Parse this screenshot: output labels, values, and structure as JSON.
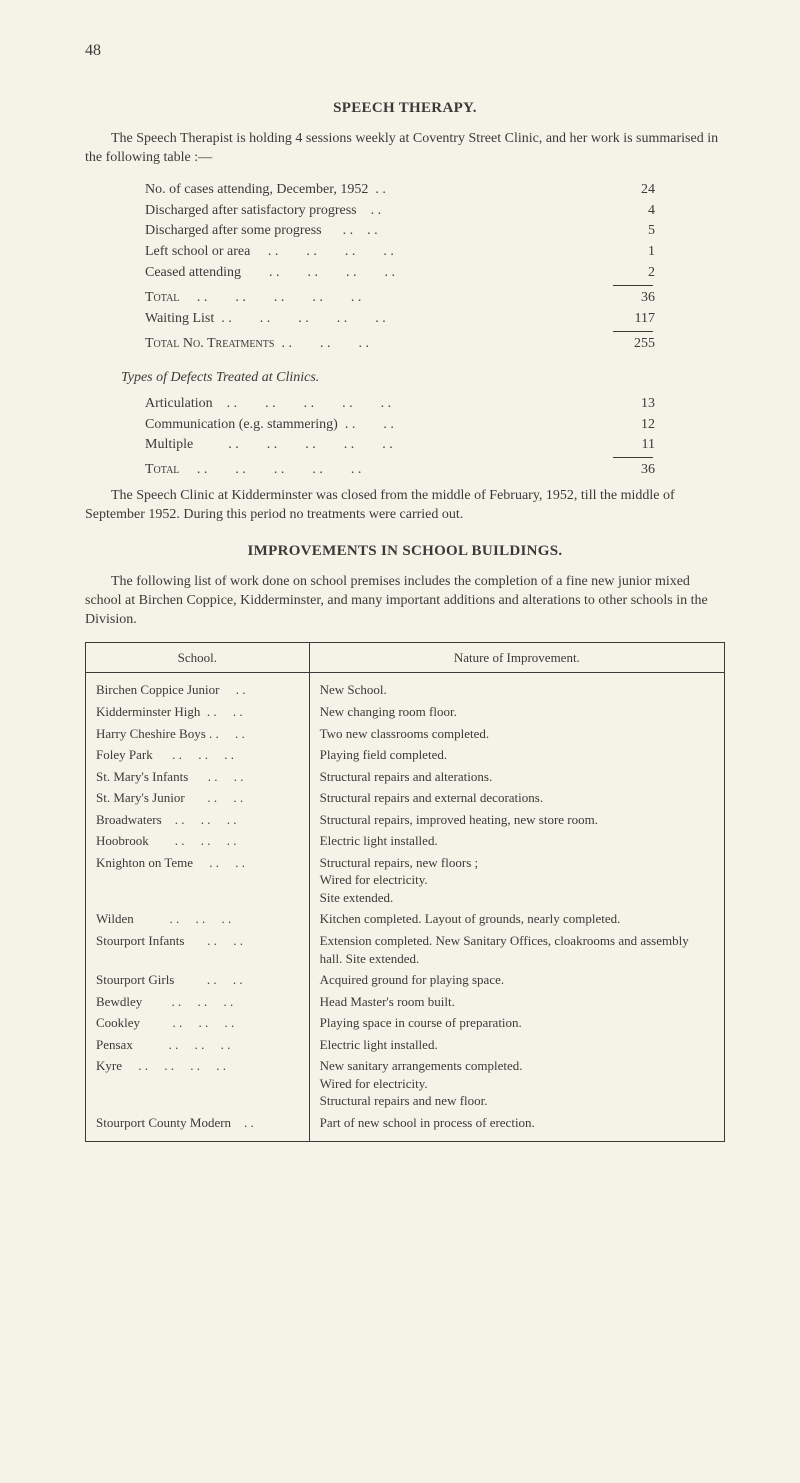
{
  "pageNumber": "48",
  "speech": {
    "title": "SPEECH THERAPY.",
    "intro": "The Speech Therapist is holding 4 sessions weekly at Coventry Street Clinic, and her work is summarised in the following table :—",
    "stats": [
      {
        "label": "No. of cases attending, December, 1952",
        "dots": "  . .",
        "value": "24"
      },
      {
        "label": "Discharged after satisfactory progress",
        "dots": "    . .",
        "value": "4"
      },
      {
        "label": "Discharged after some progress",
        "dots": "      . .    . .",
        "value": "5"
      },
      {
        "label": "Left school or area",
        "dots": "     . .        . .        . .        . .",
        "value": "1"
      },
      {
        "label": "Ceased attending",
        "dots": "        . .        . .        . .        . .",
        "value": "2"
      }
    ],
    "totalLabel": "Total",
    "totalDots": "     . .        . .        . .        . .        . .",
    "totalValue": "36",
    "waitingLabel": "Waiting List",
    "waitingDots": "  . .        . .        . .        . .        . .",
    "waitingValue": "117",
    "treatLabel": "Total No. Treatments",
    "treatDots": "  . .        . .        . .",
    "treatValue": "255",
    "typesHeading": "Types of Defects Treated at Clinics.",
    "types": [
      {
        "label": "Articulation",
        "dots": "    . .        . .        . .        . .        . .",
        "value": "13"
      },
      {
        "label": "Communication (e.g. stammering)",
        "dots": "  . .        . .",
        "value": "12"
      },
      {
        "label": "Multiple",
        "dots": "          . .        . .        . .        . .        . .",
        "value": "11"
      }
    ],
    "typesTotal": "36",
    "closing": "The Speech Clinic at Kidderminster was closed from the middle of February, 1952, till the middle of September 1952. During this period no treatments were carried out."
  },
  "improvements": {
    "title": "IMPROVEMENTS IN SCHOOL BUILDINGS.",
    "intro": "The following list of work done on school premises includes the completion of a fine new junior mixed school at Birchen Coppice, Kidderminster, and many important additions and alterations to other schools in the Division.",
    "headerSchool": "School.",
    "headerNature": "Nature of Improvement.",
    "rows": [
      {
        "school": "Birchen Coppice Junior     . .",
        "nature": "New School."
      },
      {
        "school": "Kidderminster High  . .     . .",
        "nature": "New changing room floor."
      },
      {
        "school": "Harry Cheshire Boys . .     . .",
        "nature": "Two new classrooms completed."
      },
      {
        "school": "Foley Park      . .     . .     . .",
        "nature": "Playing field completed."
      },
      {
        "school": "St. Mary's Infants      . .     . .",
        "nature": "Structural repairs and alterations."
      },
      {
        "school": "St. Mary's Junior       . .     . .",
        "nature": "Structural repairs and external decorations."
      },
      {
        "school": "Broadwaters    . .     . .     . .",
        "nature": "Structural repairs, improved heating, new store room."
      },
      {
        "school": "Hoobrook        . .     . .     . .",
        "nature": "Electric light installed."
      },
      {
        "school": "Knighton on Teme     . .     . .",
        "nature": "Structural repairs, new floors ;\n  Wired for electricity.\n  Site extended."
      },
      {
        "school": "Wilden           . .     . .     . .",
        "nature": "Kitchen completed. Layout of grounds, nearly completed."
      },
      {
        "school": "Stourport Infants       . .     . .",
        "nature": "Extension completed. New Sanitary Offices, cloakrooms and assembly hall. Site extended."
      },
      {
        "school": "Stourport Girls          . .     . .",
        "nature": "Acquired ground for playing space."
      },
      {
        "school": "Bewdley         . .     . .     . .",
        "nature": "Head Master's room built."
      },
      {
        "school": "Cookley          . .     . .     . .",
        "nature": "Playing space in course of preparation."
      },
      {
        "school": "Pensax           . .     . .     . .",
        "nature": "Electric light installed."
      },
      {
        "school": "Kyre     . .     . .     . .     . .",
        "nature": "New sanitary arrangements completed.\n  Wired for electricity.\n  Structural repairs and new floor."
      },
      {
        "school": "Stourport County Modern    . .",
        "nature": "Part of new school in process of erection."
      }
    ]
  }
}
